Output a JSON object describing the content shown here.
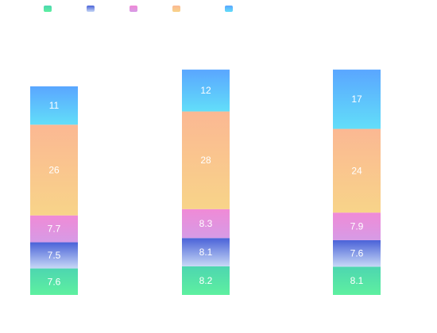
{
  "chart_data": {
    "type": "bar",
    "stacked": true,
    "categories": [
      "",
      "",
      ""
    ],
    "series": [
      {
        "values": [
          7.6,
          8.2,
          8.1
        ],
        "color_top": "#4dd6b0",
        "color_bottom": "#5ef0a0"
      },
      {
        "values": [
          7.5,
          8.1,
          7.6
        ],
        "color_top": "#4a62d8",
        "color_bottom": "#c7d8f6"
      },
      {
        "values": [
          7.7,
          8.3,
          7.9
        ],
        "color_top": "#f08ad6",
        "color_bottom": "#d69be6"
      },
      {
        "values": [
          26,
          28,
          24
        ],
        "color_top": "#fbb893",
        "color_bottom": "#f8d489"
      },
      {
        "values": [
          11,
          12,
          17
        ],
        "color_top": "#5aa6ff",
        "color_bottom": "#62def9"
      }
    ],
    "legend_position": "top-left",
    "axes_visible": false,
    "grid": false
  }
}
